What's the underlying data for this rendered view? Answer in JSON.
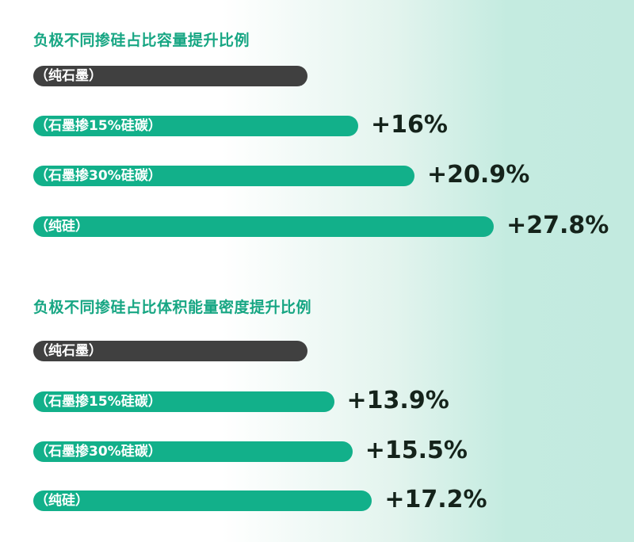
{
  "chart_data": [
    {
      "type": "bar",
      "orientation": "horizontal",
      "title": "负极不同掺硅占比容量提升比例",
      "categories": [
        "（纯石墨）",
        "（石墨掺15%硅碳）",
        "（石墨掺30%硅碳）",
        "（纯硅）"
      ],
      "values": [
        null,
        16,
        20.9,
        27.8
      ],
      "value_labels": [
        "",
        "+16%",
        "+20.9%",
        "+27.8%"
      ]
    },
    {
      "type": "bar",
      "orientation": "horizontal",
      "title": "负极不同掺硅占比体积能量密度提升比例",
      "categories": [
        "（纯石墨）",
        "（石墨掺15%硅碳）",
        "（石墨掺30%硅碳）",
        "（纯硅）"
      ],
      "values": [
        null,
        13.9,
        15.5,
        17.2
      ],
      "value_labels": [
        "",
        "+13.9%",
        "+15.5%",
        "+17.2%"
      ]
    }
  ],
  "colors": {
    "baseline_bar": "#404040",
    "silicon_bar": "#12b08a",
    "title": "#17a683",
    "value_text": "#15231b"
  }
}
